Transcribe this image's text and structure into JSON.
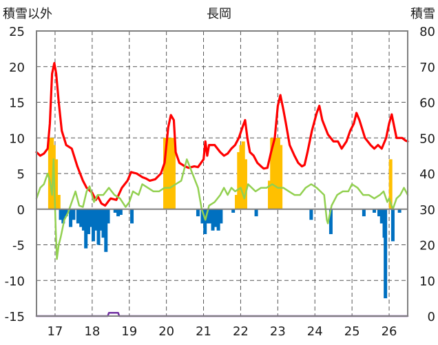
{
  "chart_data": {
    "type": "bar",
    "title": "長岡",
    "ylabel_left": "積雪以外",
    "ylabel_right": "積雪",
    "ylim_left": [
      -15,
      25
    ],
    "ylim_right": [
      0,
      80
    ],
    "yticks_left": [
      "25",
      "20",
      "15",
      "10",
      "5",
      "0",
      "-5",
      "-10",
      "-15"
    ],
    "yticks_right": [
      "80",
      "70",
      "60",
      "50",
      "40",
      "30",
      "20",
      "10",
      "0"
    ],
    "x_categories": [
      "17",
      "18",
      "19",
      "20",
      "21",
      "22",
      "23",
      "24",
      "25",
      "26"
    ],
    "xlim": [
      16.5,
      26.5
    ],
    "grid": true,
    "colors": {
      "snow_bars": "#ffc000",
      "precip_bars": "#0070c0",
      "red_line": "#ff0000",
      "green_line": "#92d050",
      "purple_line": "#7030a0"
    },
    "series": [
      {
        "type": "bar",
        "axis": "left",
        "color": "#ffc000",
        "points": [
          [
            16.86,
            10
          ],
          [
            16.92,
            10
          ],
          [
            16.97,
            9
          ],
          [
            17.03,
            7
          ],
          [
            17.1,
            2
          ],
          [
            19.96,
            10
          ],
          [
            20.02,
            10
          ],
          [
            20.08,
            10
          ],
          [
            20.14,
            10
          ],
          [
            20.2,
            10
          ],
          [
            21.89,
            2
          ],
          [
            21.95,
            8
          ],
          [
            22.01,
            9
          ],
          [
            22.07,
            9.5
          ],
          [
            22.13,
            7
          ],
          [
            22.78,
            4
          ],
          [
            22.84,
            10
          ],
          [
            22.9,
            10
          ],
          [
            22.96,
            10
          ],
          [
            23.02,
            10
          ],
          [
            23.08,
            9
          ],
          [
            26.04,
            7
          ]
        ]
      },
      {
        "type": "bar",
        "axis": "left",
        "color": "#0070c0",
        "points": [
          [
            17.15,
            -1.5
          ],
          [
            17.22,
            -2
          ],
          [
            17.3,
            -1
          ],
          [
            17.42,
            -2.5
          ],
          [
            17.5,
            -1.5
          ],
          [
            17.62,
            -2
          ],
          [
            17.7,
            -2.5
          ],
          [
            17.77,
            -3
          ],
          [
            17.83,
            -5.5
          ],
          [
            17.9,
            -3.5
          ],
          [
            17.97,
            -2.5
          ],
          [
            18.03,
            -4.5
          ],
          [
            18.1,
            -3
          ],
          [
            18.17,
            -5
          ],
          [
            18.23,
            -3
          ],
          [
            18.3,
            -4
          ],
          [
            18.37,
            -6
          ],
          [
            18.43,
            -2
          ],
          [
            18.62,
            -0.5
          ],
          [
            18.7,
            -1
          ],
          [
            18.77,
            -0.8
          ],
          [
            19.07,
            -2
          ],
          [
            20.85,
            -1
          ],
          [
            20.97,
            -2
          ],
          [
            21.04,
            -3.5
          ],
          [
            21.1,
            -2
          ],
          [
            21.18,
            -2
          ],
          [
            21.25,
            -3
          ],
          [
            21.32,
            -2.5
          ],
          [
            21.4,
            -3
          ],
          [
            21.47,
            -2
          ],
          [
            21.8,
            -0.5
          ],
          [
            22.42,
            -1
          ],
          [
            23.9,
            -1.5
          ],
          [
            24.43,
            -3.5
          ],
          [
            25.32,
            -1
          ],
          [
            25.6,
            -0.5
          ],
          [
            25.73,
            -1
          ],
          [
            25.8,
            -2
          ],
          [
            25.87,
            -4
          ],
          [
            25.9,
            -12.5
          ],
          [
            26.1,
            -4.5
          ],
          [
            26.28,
            -0.5
          ]
        ]
      },
      {
        "type": "line",
        "axis": "left",
        "color": "#ff0000",
        "points": [
          [
            16.5,
            8
          ],
          [
            16.6,
            7.5
          ],
          [
            16.7,
            7.8
          ],
          [
            16.8,
            8.5
          ],
          [
            16.86,
            12
          ],
          [
            16.92,
            19
          ],
          [
            16.98,
            20.5
          ],
          [
            17.03,
            19
          ],
          [
            17.1,
            15
          ],
          [
            17.18,
            11
          ],
          [
            17.3,
            9
          ],
          [
            17.45,
            8.5
          ],
          [
            17.6,
            6
          ],
          [
            17.75,
            4
          ],
          [
            17.85,
            3
          ],
          [
            18.0,
            2.3
          ],
          [
            18.1,
            1.3
          ],
          [
            18.15,
            1.8
          ],
          [
            18.25,
            0.8
          ],
          [
            18.35,
            0.5
          ],
          [
            18.45,
            1.2
          ],
          [
            18.5,
            1.5
          ],
          [
            18.65,
            1.3
          ],
          [
            18.8,
            3
          ],
          [
            18.95,
            4
          ],
          [
            19.05,
            5.2
          ],
          [
            19.2,
            5
          ],
          [
            19.35,
            4.5
          ],
          [
            19.45,
            4.3
          ],
          [
            19.55,
            4
          ],
          [
            19.7,
            4.2
          ],
          [
            19.85,
            5
          ],
          [
            19.95,
            6.5
          ],
          [
            20.05,
            11.5
          ],
          [
            20.12,
            13.2
          ],
          [
            20.2,
            12.5
          ],
          [
            20.25,
            8
          ],
          [
            20.35,
            6.5
          ],
          [
            20.5,
            6
          ],
          [
            20.6,
            5.8
          ],
          [
            20.75,
            6
          ],
          [
            20.85,
            5.9
          ],
          [
            21.0,
            7
          ],
          [
            21.05,
            9.5
          ],
          [
            21.1,
            7.5
          ],
          [
            21.15,
            9
          ],
          [
            21.3,
            9
          ],
          [
            21.45,
            8
          ],
          [
            21.55,
            7.5
          ],
          [
            21.65,
            7.8
          ],
          [
            21.75,
            8.5
          ],
          [
            21.85,
            9
          ],
          [
            21.95,
            10
          ],
          [
            22.05,
            11.5
          ],
          [
            22.12,
            12.5
          ],
          [
            22.18,
            10
          ],
          [
            22.25,
            8
          ],
          [
            22.35,
            7.5
          ],
          [
            22.45,
            6.5
          ],
          [
            22.55,
            6
          ],
          [
            22.62,
            5.7
          ],
          [
            22.72,
            5.8
          ],
          [
            22.82,
            8
          ],
          [
            22.92,
            10
          ],
          [
            23.0,
            14.5
          ],
          [
            23.07,
            16
          ],
          [
            23.15,
            14
          ],
          [
            23.22,
            12
          ],
          [
            23.32,
            9
          ],
          [
            23.45,
            7.5
          ],
          [
            23.55,
            6.5
          ],
          [
            23.65,
            6
          ],
          [
            23.72,
            6.2
          ],
          [
            23.8,
            8
          ],
          [
            23.92,
            11
          ],
          [
            24.05,
            13.5
          ],
          [
            24.12,
            14.5
          ],
          [
            24.2,
            12.5
          ],
          [
            24.35,
            10.5
          ],
          [
            24.5,
            9.5
          ],
          [
            24.62,
            9.5
          ],
          [
            24.72,
            8.5
          ],
          [
            24.85,
            9.5
          ],
          [
            24.95,
            11
          ],
          [
            25.05,
            12
          ],
          [
            25.12,
            13.5
          ],
          [
            25.2,
            12.5
          ],
          [
            25.35,
            10
          ],
          [
            25.5,
            9
          ],
          [
            25.6,
            8.5
          ],
          [
            25.7,
            9
          ],
          [
            25.8,
            8.5
          ],
          [
            25.92,
            10
          ],
          [
            26.0,
            12
          ],
          [
            26.07,
            13.3
          ],
          [
            26.12,
            12
          ],
          [
            26.2,
            10
          ],
          [
            26.35,
            10
          ],
          [
            26.45,
            9.6
          ],
          [
            26.5,
            9.5
          ]
        ]
      },
      {
        "type": "line",
        "axis": "left",
        "color": "#92d050",
        "points": [
          [
            16.5,
            1.5
          ],
          [
            16.6,
            3
          ],
          [
            16.7,
            3.5
          ],
          [
            16.8,
            5
          ],
          [
            16.86,
            4
          ],
          [
            16.92,
            2
          ],
          [
            16.96,
            7
          ],
          [
            17.02,
            -3
          ],
          [
            17.05,
            -7
          ],
          [
            17.1,
            -5
          ],
          [
            17.15,
            -4
          ],
          [
            17.25,
            -1.5
          ],
          [
            17.35,
            -0.5
          ],
          [
            17.45,
            1
          ],
          [
            17.55,
            2.5
          ],
          [
            17.65,
            0.5
          ],
          [
            17.75,
            0.3
          ],
          [
            17.85,
            2.5
          ],
          [
            17.93,
            3.2
          ],
          [
            18.05,
            1
          ],
          [
            18.15,
            2
          ],
          [
            18.3,
            2
          ],
          [
            18.45,
            3
          ],
          [
            18.6,
            2
          ],
          [
            18.75,
            1.5
          ],
          [
            18.9,
            0.3
          ],
          [
            19.0,
            1
          ],
          [
            19.1,
            2.5
          ],
          [
            19.25,
            2
          ],
          [
            19.35,
            3.5
          ],
          [
            19.5,
            3
          ],
          [
            19.65,
            2.5
          ],
          [
            19.8,
            2.5
          ],
          [
            19.95,
            3
          ],
          [
            20.1,
            3
          ],
          [
            20.25,
            3.5
          ],
          [
            20.4,
            4
          ],
          [
            20.5,
            6
          ],
          [
            20.55,
            7
          ],
          [
            20.7,
            5
          ],
          [
            20.85,
            3
          ],
          [
            20.95,
            0
          ],
          [
            21.05,
            -1.5
          ],
          [
            21.15,
            0.5
          ],
          [
            21.3,
            1
          ],
          [
            21.45,
            2
          ],
          [
            21.55,
            3
          ],
          [
            21.65,
            2
          ],
          [
            21.75,
            3
          ],
          [
            21.85,
            2.5
          ],
          [
            22.0,
            3
          ],
          [
            22.1,
            1.5
          ],
          [
            22.2,
            3.5
          ],
          [
            22.3,
            3
          ],
          [
            22.4,
            2.5
          ],
          [
            22.55,
            3
          ],
          [
            22.7,
            3
          ],
          [
            22.85,
            3.5
          ],
          [
            23.0,
            3
          ],
          [
            23.15,
            3
          ],
          [
            23.3,
            2.5
          ],
          [
            23.45,
            2
          ],
          [
            23.6,
            2
          ],
          [
            23.75,
            3
          ],
          [
            23.9,
            3.5
          ],
          [
            24.05,
            3
          ],
          [
            24.15,
            2.5
          ],
          [
            24.25,
            2
          ],
          [
            24.32,
            -1.5
          ],
          [
            24.35,
            -2
          ],
          [
            24.45,
            0.5
          ],
          [
            24.6,
            2
          ],
          [
            24.75,
            2.5
          ],
          [
            24.9,
            2.5
          ],
          [
            25.0,
            3.5
          ],
          [
            25.15,
            3
          ],
          [
            25.3,
            2
          ],
          [
            25.45,
            2
          ],
          [
            25.6,
            1.5
          ],
          [
            25.75,
            2
          ],
          [
            25.85,
            2.5
          ],
          [
            25.95,
            1
          ],
          [
            26.0,
            1.5
          ],
          [
            26.1,
            0
          ],
          [
            26.2,
            1.5
          ],
          [
            26.3,
            2
          ],
          [
            26.4,
            3
          ],
          [
            26.5,
            2
          ]
        ]
      },
      {
        "type": "line",
        "axis": "right",
        "color": "#7030a0",
        "points": [
          [
            16.5,
            0
          ],
          [
            18.42,
            0
          ],
          [
            18.45,
            0.9
          ],
          [
            18.7,
            0.9
          ],
          [
            18.73,
            0
          ],
          [
            26.5,
            0
          ]
        ]
      }
    ]
  }
}
